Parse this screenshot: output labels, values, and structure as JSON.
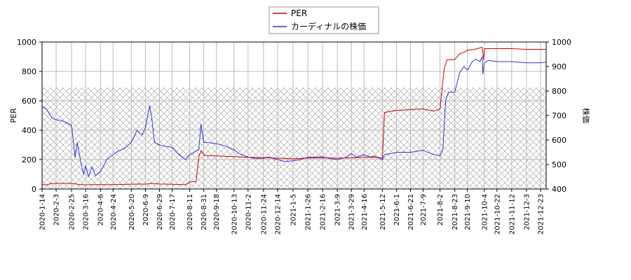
{
  "chart_data": {
    "type": "line",
    "legend": {
      "placement": "top-center",
      "entries": [
        {
          "name": "PER",
          "color": "#cc0000"
        },
        {
          "name": "カーディナルの株価",
          "color": "#3333cc"
        }
      ]
    },
    "ylabel_left": "PER",
    "ylabel_right": "株価",
    "ylim_left": [
      0,
      1000
    ],
    "ylim_right": [
      400,
      1000
    ],
    "yticks_left": [
      "0",
      "200",
      "400",
      "600",
      "800",
      "1000"
    ],
    "yticks_right": [
      "400",
      "500",
      "600",
      "700",
      "800",
      "900",
      "1000"
    ],
    "xlim": [
      "2020-01-14",
      "2021-12-31"
    ],
    "xticks": [
      "2020-1-14",
      "2020-2-3",
      "2020-2-25",
      "2020-3-16",
      "2020-4-6",
      "2020-4-24",
      "2020-5-20",
      "2020-6-9",
      "2020-6-29",
      "2020-7-17",
      "2020-8-11",
      "2020-8-31",
      "2020-9-18",
      "2020-10-13",
      "2020-11-2",
      "2020-11-24",
      "2020-12-14",
      "2021-1-5",
      "2021-1-26",
      "2021-2-16",
      "2021-3-9",
      "2021-3-29",
      "2021-4-16",
      "2021-5-12",
      "2021-6-1",
      "2021-6-21",
      "2021-7-9",
      "2021-8-2",
      "2021-8-23",
      "2021-9-10",
      "2021-10-4",
      "2021-10-22",
      "2021-11-12",
      "2021-12-3",
      "2021-12-23"
    ],
    "grid": true,
    "hatched_band": {
      "axis": "left",
      "from": 0,
      "to": 690
    },
    "series": [
      {
        "name": "PER",
        "axis": "left",
        "color": "#cc0000",
        "points": [
          [
            "2020-01-14",
            30
          ],
          [
            "2020-01-20",
            28
          ],
          [
            "2020-01-28",
            38
          ],
          [
            "2020-02-10",
            38
          ],
          [
            "2020-02-25",
            38
          ],
          [
            "2020-03-05",
            32
          ],
          [
            "2020-03-16",
            28
          ],
          [
            "2020-03-25",
            30
          ],
          [
            "2020-04-06",
            30
          ],
          [
            "2020-04-24",
            30
          ],
          [
            "2020-05-20",
            33
          ],
          [
            "2020-06-01",
            34
          ],
          [
            "2020-06-09",
            33
          ],
          [
            "2020-06-18",
            38
          ],
          [
            "2020-06-29",
            34
          ],
          [
            "2020-07-17",
            32
          ],
          [
            "2020-07-30",
            30
          ],
          [
            "2020-08-05",
            30
          ],
          [
            "2020-08-11",
            48
          ],
          [
            "2020-08-20",
            50
          ],
          [
            "2020-08-24",
            220
          ],
          [
            "2020-08-27",
            258
          ],
          [
            "2020-09-01",
            228
          ],
          [
            "2020-09-18",
            225
          ],
          [
            "2020-10-01",
            222
          ],
          [
            "2020-10-13",
            220
          ],
          [
            "2020-11-02",
            215
          ],
          [
            "2020-11-24",
            213
          ],
          [
            "2020-12-14",
            210
          ],
          [
            "2021-01-05",
            205
          ],
          [
            "2021-01-26",
            210
          ],
          [
            "2021-02-16",
            212
          ],
          [
            "2021-03-09",
            210
          ],
          [
            "2021-03-29",
            212
          ],
          [
            "2021-04-16",
            215
          ],
          [
            "2021-05-01",
            215
          ],
          [
            "2021-05-12",
            210
          ],
          [
            "2021-05-15",
            520
          ],
          [
            "2021-06-01",
            535
          ],
          [
            "2021-06-21",
            540
          ],
          [
            "2021-07-09",
            545
          ],
          [
            "2021-07-25",
            530
          ],
          [
            "2021-08-02",
            545
          ],
          [
            "2021-08-08",
            820
          ],
          [
            "2021-08-12",
            880
          ],
          [
            "2021-08-23",
            880
          ],
          [
            "2021-08-30",
            920
          ],
          [
            "2021-09-05",
            930
          ],
          [
            "2021-09-10",
            945
          ],
          [
            "2021-09-20",
            950
          ],
          [
            "2021-09-28",
            960
          ],
          [
            "2021-10-01",
            965
          ],
          [
            "2021-10-03",
            880
          ],
          [
            "2021-10-04",
            955
          ],
          [
            "2021-10-22",
            955
          ],
          [
            "2021-11-12",
            955
          ],
          [
            "2021-12-03",
            950
          ],
          [
            "2021-12-23",
            950
          ],
          [
            "2021-12-31",
            950
          ]
        ]
      },
      {
        "name": "カーディナルの株価",
        "axis": "right",
        "color": "#3333cc",
        "points": [
          [
            "2020-01-14",
            735
          ],
          [
            "2020-01-20",
            728
          ],
          [
            "2020-01-28",
            690
          ],
          [
            "2020-02-03",
            682
          ],
          [
            "2020-02-10",
            680
          ],
          [
            "2020-02-18",
            670
          ],
          [
            "2020-02-25",
            660
          ],
          [
            "2020-03-01",
            530
          ],
          [
            "2020-03-04",
            590
          ],
          [
            "2020-03-09",
            510
          ],
          [
            "2020-03-13",
            460
          ],
          [
            "2020-03-16",
            495
          ],
          [
            "2020-03-20",
            450
          ],
          [
            "2020-03-25",
            490
          ],
          [
            "2020-03-30",
            455
          ],
          [
            "2020-04-06",
            470
          ],
          [
            "2020-04-15",
            520
          ],
          [
            "2020-04-24",
            540
          ],
          [
            "2020-05-01",
            555
          ],
          [
            "2020-05-10",
            565
          ],
          [
            "2020-05-20",
            590
          ],
          [
            "2020-05-28",
            640
          ],
          [
            "2020-06-04",
            620
          ],
          [
            "2020-06-09",
            650
          ],
          [
            "2020-06-15",
            740
          ],
          [
            "2020-06-18",
            690
          ],
          [
            "2020-06-22",
            590
          ],
          [
            "2020-06-29",
            580
          ],
          [
            "2020-07-06",
            575
          ],
          [
            "2020-07-17",
            570
          ],
          [
            "2020-07-25",
            545
          ],
          [
            "2020-08-05",
            520
          ],
          [
            "2020-08-11",
            540
          ],
          [
            "2020-08-20",
            555
          ],
          [
            "2020-08-24",
            560
          ],
          [
            "2020-08-27",
            665
          ],
          [
            "2020-08-31",
            590
          ],
          [
            "2020-09-05",
            590
          ],
          [
            "2020-09-18",
            585
          ],
          [
            "2020-10-01",
            575
          ],
          [
            "2020-10-13",
            560
          ],
          [
            "2020-10-20",
            545
          ],
          [
            "2020-11-02",
            530
          ],
          [
            "2020-11-10",
            525
          ],
          [
            "2020-11-24",
            525
          ],
          [
            "2020-12-01",
            530
          ],
          [
            "2020-12-14",
            520
          ],
          [
            "2020-12-25",
            512
          ],
          [
            "2021-01-05",
            515
          ],
          [
            "2021-01-15",
            520
          ],
          [
            "2021-01-26",
            530
          ],
          [
            "2021-02-05",
            530
          ],
          [
            "2021-02-16",
            532
          ],
          [
            "2021-02-25",
            525
          ],
          [
            "2021-03-09",
            520
          ],
          [
            "2021-03-20",
            528
          ],
          [
            "2021-03-29",
            545
          ],
          [
            "2021-04-05",
            530
          ],
          [
            "2021-04-16",
            540
          ],
          [
            "2021-04-25",
            530
          ],
          [
            "2021-05-01",
            535
          ],
          [
            "2021-05-12",
            520
          ],
          [
            "2021-05-15",
            540
          ],
          [
            "2021-05-25",
            545
          ],
          [
            "2021-06-01",
            550
          ],
          [
            "2021-06-21",
            550
          ],
          [
            "2021-07-09",
            558
          ],
          [
            "2021-07-20",
            545
          ],
          [
            "2021-08-02",
            535
          ],
          [
            "2021-08-06",
            560
          ],
          [
            "2021-08-10",
            760
          ],
          [
            "2021-08-14",
            795
          ],
          [
            "2021-08-23",
            795
          ],
          [
            "2021-08-30",
            875
          ],
          [
            "2021-09-05",
            900
          ],
          [
            "2021-09-10",
            885
          ],
          [
            "2021-09-17",
            920
          ],
          [
            "2021-09-22",
            930
          ],
          [
            "2021-09-28",
            920
          ],
          [
            "2021-10-01",
            940
          ],
          [
            "2021-10-02",
            870
          ],
          [
            "2021-10-04",
            915
          ],
          [
            "2021-10-10",
            925
          ],
          [
            "2021-10-22",
            920
          ],
          [
            "2021-11-12",
            920
          ],
          [
            "2021-12-03",
            915
          ],
          [
            "2021-12-23",
            915
          ],
          [
            "2021-12-31",
            918
          ]
        ]
      }
    ]
  }
}
